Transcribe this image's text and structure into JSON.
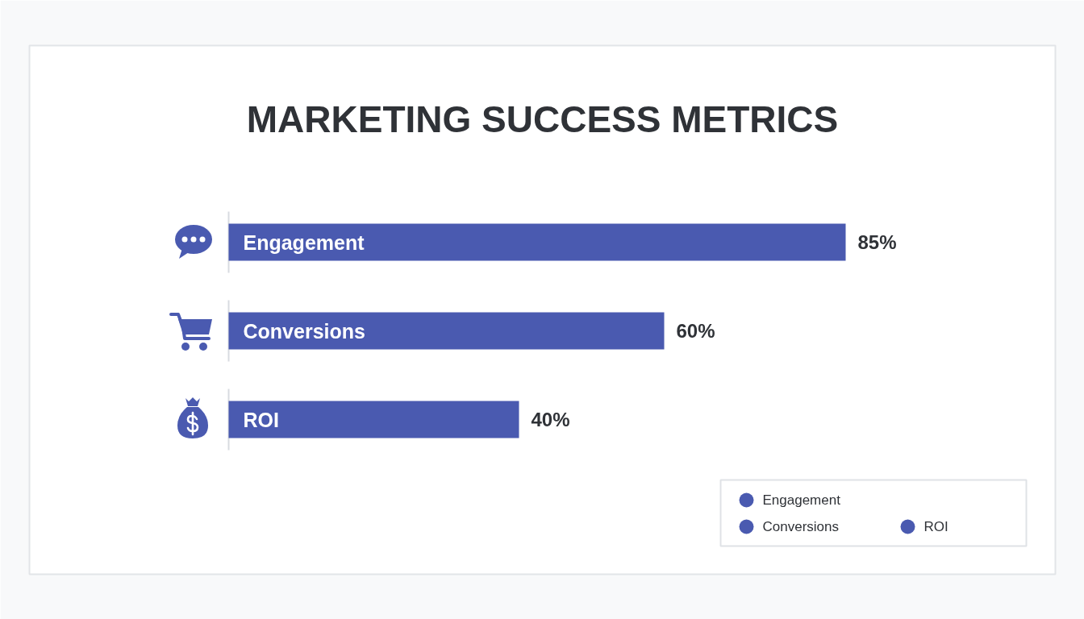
{
  "chart_data": {
    "type": "bar",
    "orientation": "horizontal",
    "title": "MARKETING SUCCESS METRICS",
    "categories": [
      "Engagement",
      "Conversions",
      "ROI"
    ],
    "series": [
      {
        "name": "Engagement",
        "color": "#4a5ab0",
        "values": [
          85,
          null,
          null
        ],
        "value_labels": [
          "85%",
          null,
          null
        ]
      },
      {
        "name": "Conversions",
        "color": "#4a5ab0",
        "values": [
          null,
          60,
          null
        ],
        "value_labels": [
          null,
          "60%",
          null
        ]
      },
      {
        "name": "ROI",
        "color": "#4a5ab0",
        "values": [
          null,
          null,
          40
        ],
        "value_labels": [
          null,
          null,
          "40%"
        ]
      }
    ],
    "legend": "bottom right"
  }
}
